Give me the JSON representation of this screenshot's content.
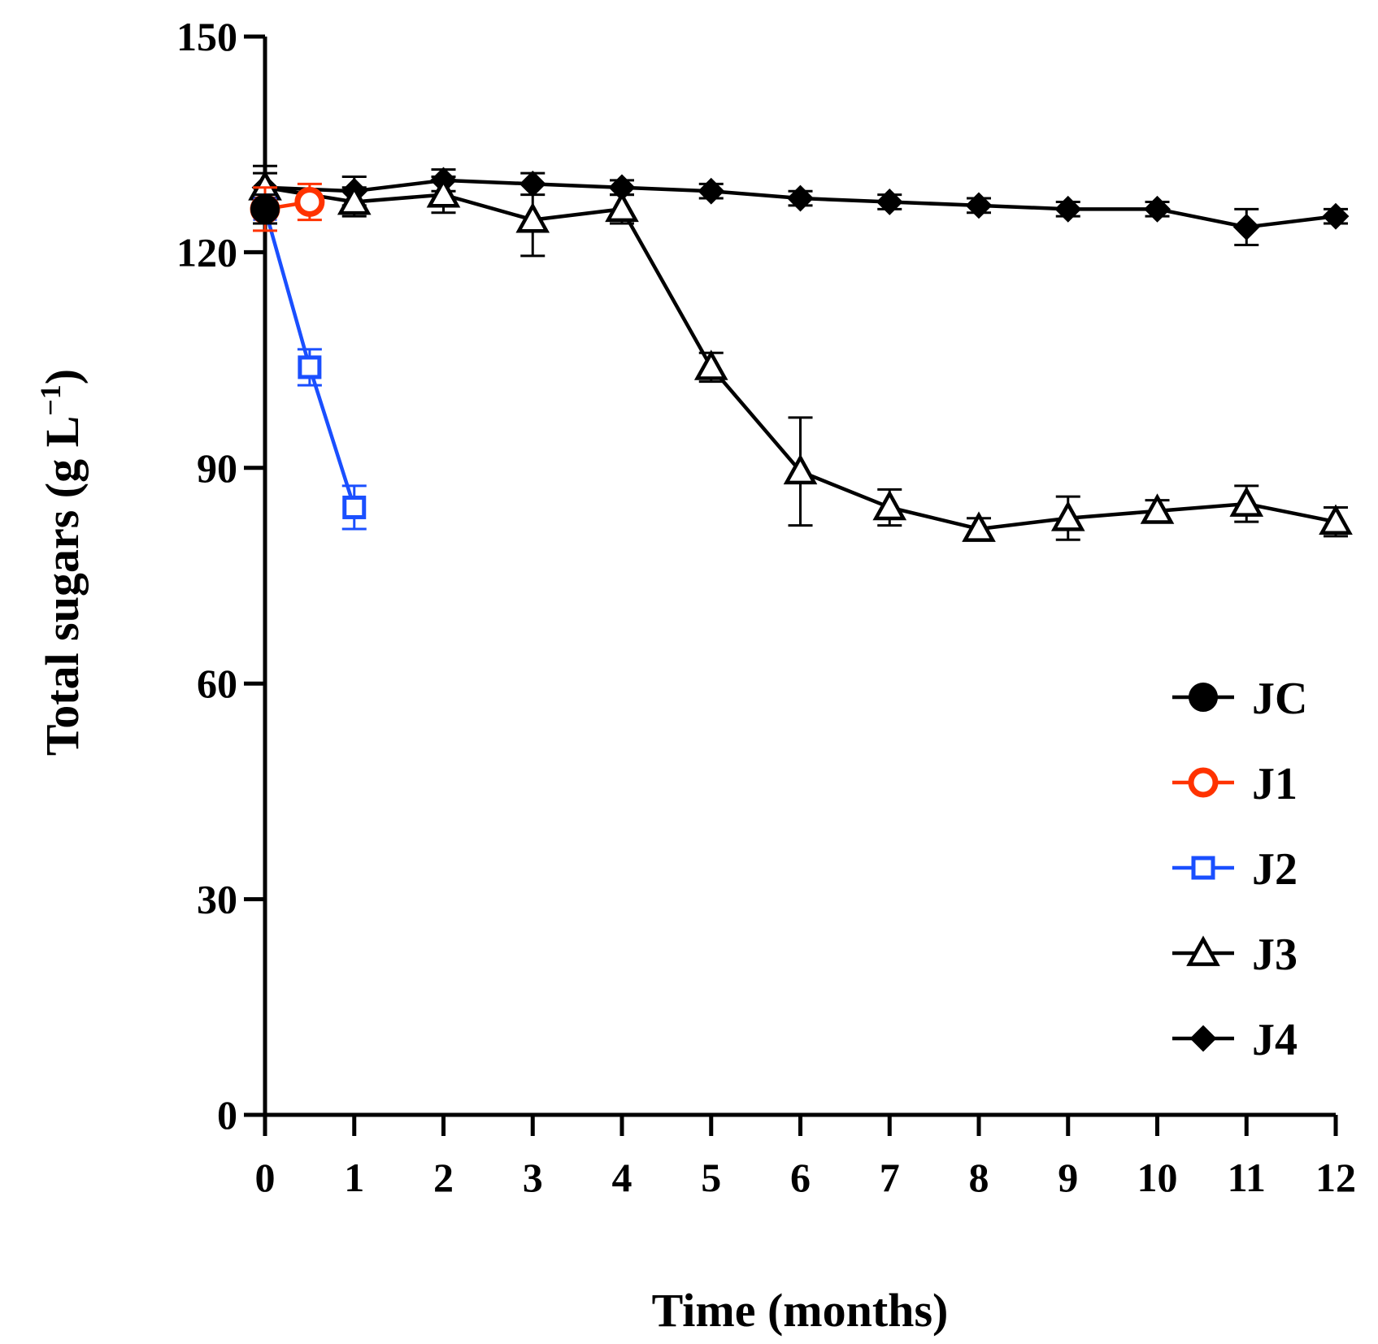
{
  "chart_data": {
    "type": "line",
    "title": "",
    "xlabel": "Time (months)",
    "ylabel_main": "Total sugars (g L",
    "ylabel_sup": "−1",
    "ylabel_close": ")",
    "xlim": [
      0,
      12
    ],
    "ylim": [
      0,
      150
    ],
    "x_ticks": [
      "0",
      "1",
      "2",
      "3",
      "4",
      "5",
      "6",
      "7",
      "8",
      "9",
      "10",
      "11",
      "12"
    ],
    "y_ticks": [
      "0",
      "30",
      "60",
      "90",
      "120",
      "150"
    ],
    "grid": false,
    "legend_position": "right",
    "series": [
      {
        "name": "JC",
        "color": "#000000",
        "marker": "circle-filled",
        "x": [
          0
        ],
        "y": [
          126
        ],
        "err": [
          2
        ]
      },
      {
        "name": "J1",
        "color": "#ff3300",
        "marker": "circle-open",
        "x": [
          0,
          0.5
        ],
        "y": [
          126,
          127
        ],
        "err": [
          3,
          2.5
        ]
      },
      {
        "name": "J2",
        "color": "#1a4fff",
        "marker": "square-open",
        "x": [
          0,
          0.5,
          1
        ],
        "y": [
          126,
          104,
          84.5
        ],
        "err": [
          2,
          2.5,
          3
        ]
      },
      {
        "name": "J3",
        "color": "#000000",
        "marker": "triangle-open",
        "x": [
          0,
          1,
          2,
          3,
          4,
          5,
          6,
          7,
          8,
          9,
          10,
          11,
          12
        ],
        "y": [
          129,
          127,
          128,
          124.5,
          126,
          104,
          89.5,
          84.5,
          81.5,
          83,
          84,
          85,
          82.5
        ],
        "err": [
          3,
          2,
          2.5,
          5,
          2,
          2,
          7.5,
          2.5,
          1.5,
          3,
          1.5,
          2.5,
          2
        ]
      },
      {
        "name": "J4",
        "color": "#000000",
        "marker": "diamond-filled",
        "x": [
          0,
          1,
          2,
          3,
          4,
          5,
          6,
          7,
          8,
          9,
          10,
          11,
          12
        ],
        "y": [
          129,
          128.5,
          130,
          129.5,
          129,
          128.5,
          127.5,
          127,
          126.5,
          126,
          126,
          123.5,
          125
        ],
        "err": [
          2,
          2,
          1.5,
          1.5,
          1,
          1,
          1,
          1,
          1,
          1,
          1,
          2.5,
          1
        ]
      }
    ]
  }
}
